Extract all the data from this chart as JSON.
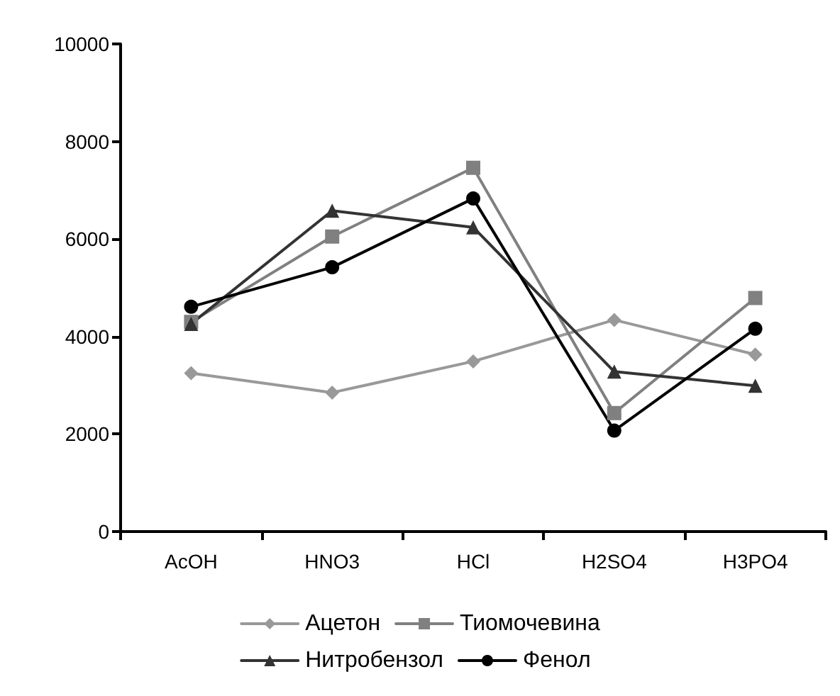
{
  "chart_data": {
    "type": "line",
    "categories": [
      "AcOH",
      "HNO3",
      "HCl",
      "H2SO4",
      "H3PO4"
    ],
    "series": [
      {
        "name": "Ацетон",
        "color": "#999999",
        "marker": "diamond",
        "values": [
          3250,
          2850,
          3490,
          4340,
          3630
        ]
      },
      {
        "name": "Тиомочевина",
        "color": "#808080",
        "marker": "square",
        "values": [
          4300,
          6050,
          7460,
          2430,
          4790
        ]
      },
      {
        "name": "Нитробензол",
        "color": "#333333",
        "marker": "triangle",
        "values": [
          4260,
          6580,
          6240,
          3280,
          2990
        ]
      },
      {
        "name": "Фенол",
        "color": "#000000",
        "marker": "circle",
        "values": [
          4610,
          5420,
          6830,
          2070,
          4160
        ]
      }
    ],
    "ylim": [
      0,
      10000
    ],
    "yticks": [
      0,
      2000,
      4000,
      6000,
      8000,
      10000
    ],
    "grid": false,
    "legend": "bottom",
    "line_style": "solid"
  }
}
